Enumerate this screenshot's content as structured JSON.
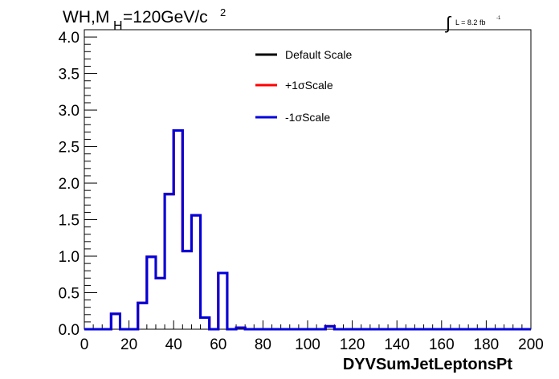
{
  "chart_data": {
    "type": "line",
    "style": "step-histogram",
    "title": {
      "main": "WH,M",
      "sub": "H",
      "rest": "=120GeV/c",
      "sup": "2"
    },
    "lumi": {
      "integral": "∫",
      "text": "L = 8.2 fb",
      "sup": "-1"
    },
    "xlabel": "DYVSumJetLeptonsPt",
    "ylabel": "",
    "xlim": [
      0,
      200
    ],
    "ylim": [
      0,
      4.1
    ],
    "xticks": [
      "0",
      "20",
      "40",
      "60",
      "80",
      "100",
      "120",
      "140",
      "160",
      "180",
      "200"
    ],
    "yticks": [
      "0.0",
      "0.5",
      "1.0",
      "1.5",
      "2.0",
      "2.5",
      "3.0",
      "3.5",
      "4.0"
    ],
    "bin_width": 4,
    "legend_position": "top-center",
    "series": [
      {
        "name": "Default Scale",
        "color": "#000000",
        "values": [
          0,
          0,
          0,
          0.21,
          0,
          0,
          0.36,
          0.99,
          0.7,
          1.85,
          2.72,
          1.07,
          1.56,
          0.16,
          0,
          0.77,
          0,
          0.02,
          0,
          0,
          0,
          0,
          0,
          0,
          0,
          0,
          0,
          0.04,
          0,
          0,
          0,
          0,
          0,
          0,
          0,
          0,
          0,
          0,
          0,
          0,
          0,
          0,
          0,
          0,
          0,
          0,
          0,
          0,
          0,
          0
        ]
      },
      {
        "name": "+1σScale",
        "color": "#ff0000",
        "values": [
          0,
          0,
          0,
          0.21,
          0,
          0,
          0.36,
          0.99,
          0.7,
          1.85,
          2.72,
          1.07,
          1.56,
          0.16,
          0,
          0.77,
          0,
          0.02,
          0,
          0,
          0,
          0,
          0,
          0,
          0,
          0,
          0,
          0.04,
          0,
          0,
          0,
          0,
          0,
          0,
          0,
          0,
          0,
          0,
          0,
          0,
          0,
          0,
          0,
          0,
          0,
          0,
          0,
          0,
          0,
          0
        ]
      },
      {
        "name": "-1σScale",
        "color": "#0000dd",
        "values": [
          0,
          0,
          0,
          0.21,
          0,
          0,
          0.36,
          0.99,
          0.7,
          1.85,
          2.72,
          1.07,
          1.56,
          0.16,
          0,
          0.77,
          0,
          0.02,
          0,
          0,
          0,
          0,
          0,
          0,
          0,
          0,
          0,
          0.04,
          0,
          0,
          0,
          0,
          0,
          0,
          0,
          0,
          0,
          0,
          0,
          0,
          0,
          0,
          0,
          0,
          0,
          0,
          0,
          0,
          0,
          0
        ]
      }
    ]
  }
}
